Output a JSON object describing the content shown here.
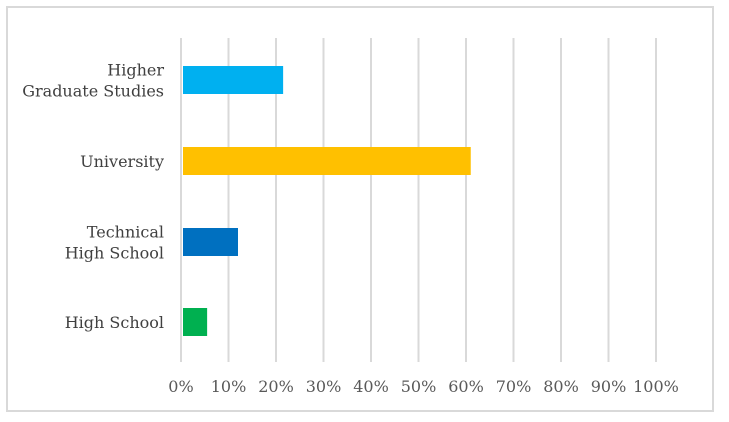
{
  "chart_data": {
    "type": "bar",
    "orientation": "horizontal",
    "categories": [
      [
        "Higher",
        "Graduate Studies"
      ],
      [
        "University"
      ],
      [
        "Technical",
        "High School"
      ],
      [
        "High School"
      ]
    ],
    "values": [
      0.215,
      0.61,
      0.12,
      0.055
    ],
    "colors": [
      "#00b0f0",
      "#ffc000",
      "#0070c0",
      "#00b050"
    ],
    "xlim": [
      0,
      1
    ],
    "x_ticks": [
      "0%",
      "10%",
      "20%",
      "30%",
      "40%",
      "50%",
      "60%",
      "70%",
      "80%",
      "90%",
      "100%"
    ],
    "grid": "vertical",
    "title": "",
    "xlabel": "",
    "ylabel": ""
  }
}
